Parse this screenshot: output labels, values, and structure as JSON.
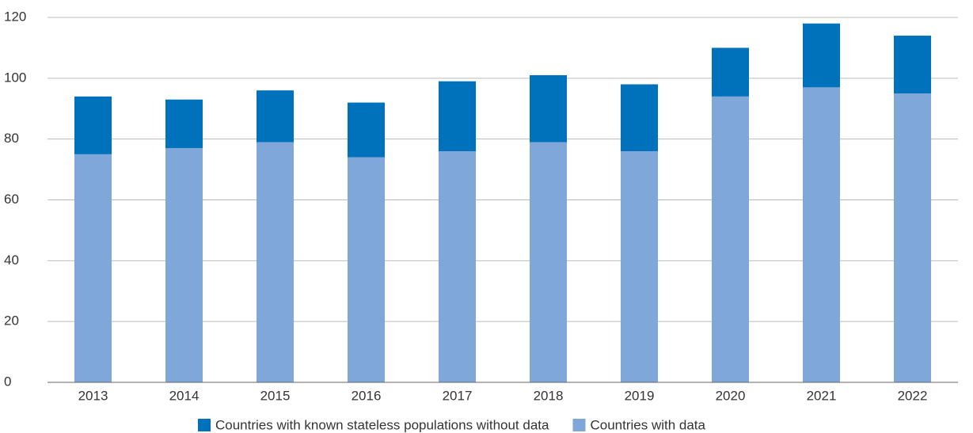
{
  "chart_data": {
    "type": "stacked_bar",
    "categories": [
      "2013",
      "2014",
      "2015",
      "2016",
      "2017",
      "2018",
      "2019",
      "2020",
      "2021",
      "2022"
    ],
    "series": [
      {
        "name": "Countries with data",
        "color": "#7fa7d9",
        "values": [
          75,
          77,
          79,
          74,
          76,
          79,
          76,
          94,
          97,
          95
        ]
      },
      {
        "name": "Countries with known stateless populations without data",
        "color": "#0072bc",
        "values": [
          19,
          16,
          17,
          18,
          23,
          22,
          22,
          16,
          21,
          19
        ]
      }
    ],
    "ylim": [
      0,
      120
    ],
    "yticks": [
      0,
      20,
      40,
      60,
      80,
      100,
      120
    ],
    "grid": true
  }
}
